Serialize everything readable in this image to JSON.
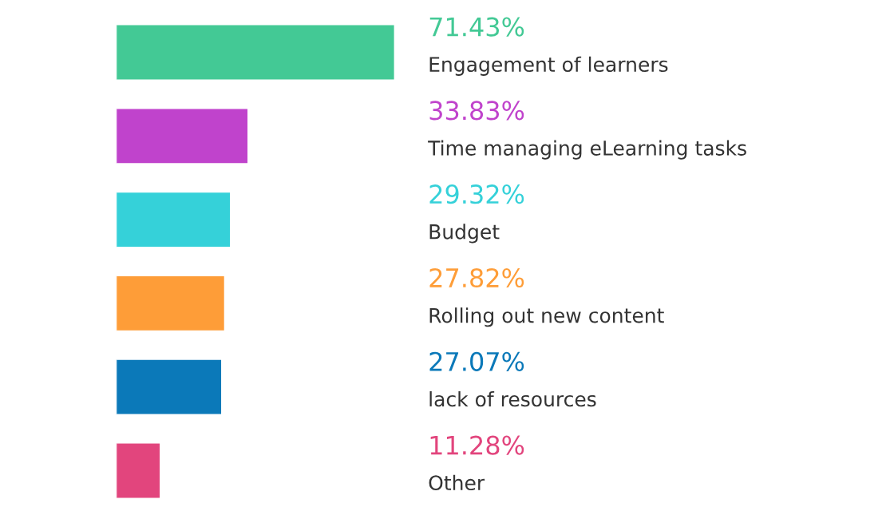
{
  "chart_data": {
    "type": "bar",
    "orientation": "horizontal",
    "categories": [
      "Engagement of learners",
      "Time managing eLearning tasks",
      "Budget",
      "Rolling out new content",
      "lack of resources",
      "Other"
    ],
    "values": [
      71.43,
      33.83,
      29.32,
      27.82,
      27.07,
      11.28
    ],
    "value_labels": [
      "71.43%",
      "33.83%",
      "29.32%",
      "27.82%",
      "27.07%",
      "11.28%"
    ],
    "colors": [
      "#43c995",
      "#c043cc",
      "#35d1d9",
      "#fe9d38",
      "#0b79b9",
      "#e2457d"
    ],
    "legend": false
  }
}
